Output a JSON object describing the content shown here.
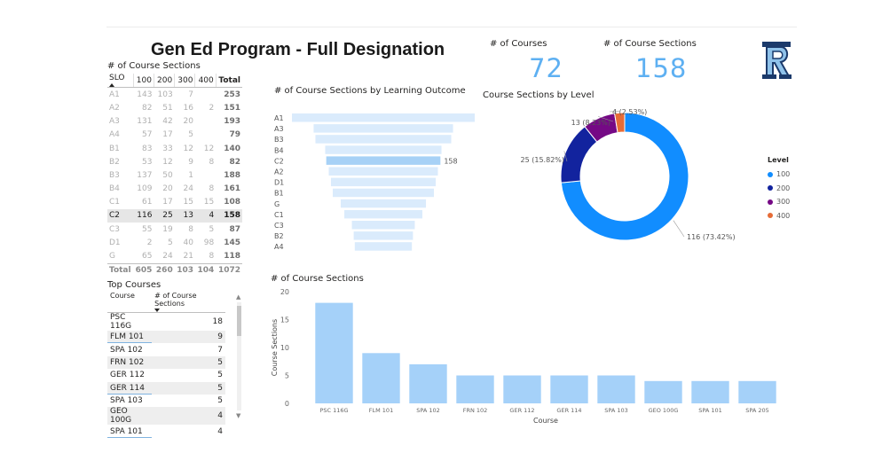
{
  "title": "Gen Ed Program - Full Designation",
  "matrix": {
    "heading": "# of Course Sections",
    "columns": [
      "SLO",
      "100",
      "200",
      "300",
      "400",
      "Total"
    ],
    "rows": [
      {
        "slo": "A1",
        "v100": "143",
        "v200": "103",
        "v300": "7",
        "v400": "",
        "total": "253"
      },
      {
        "slo": "A2",
        "v100": "82",
        "v200": "51",
        "v300": "16",
        "v400": "2",
        "total": "151"
      },
      {
        "slo": "A3",
        "v100": "131",
        "v200": "42",
        "v300": "20",
        "v400": "",
        "total": "193"
      },
      {
        "slo": "A4",
        "v100": "57",
        "v200": "17",
        "v300": "5",
        "v400": "",
        "total": "79"
      },
      {
        "slo": "B1",
        "v100": "83",
        "v200": "33",
        "v300": "12",
        "v400": "12",
        "total": "140"
      },
      {
        "slo": "B2",
        "v100": "53",
        "v200": "12",
        "v300": "9",
        "v400": "8",
        "total": "82"
      },
      {
        "slo": "B3",
        "v100": "137",
        "v200": "50",
        "v300": "1",
        "v400": "",
        "total": "188"
      },
      {
        "slo": "B4",
        "v100": "109",
        "v200": "20",
        "v300": "24",
        "v400": "8",
        "total": "161"
      },
      {
        "slo": "C1",
        "v100": "61",
        "v200": "17",
        "v300": "15",
        "v400": "15",
        "total": "108"
      },
      {
        "slo": "C2",
        "v100": "116",
        "v200": "25",
        "v300": "13",
        "v400": "4",
        "total": "158"
      },
      {
        "slo": "C3",
        "v100": "55",
        "v200": "19",
        "v300": "8",
        "v400": "5",
        "total": "87"
      },
      {
        "slo": "D1",
        "v100": "2",
        "v200": "5",
        "v300": "40",
        "v400": "98",
        "total": "145"
      },
      {
        "slo": "G",
        "v100": "65",
        "v200": "24",
        "v300": "21",
        "v400": "8",
        "total": "118"
      }
    ],
    "total_row": {
      "slo": "Total",
      "v100": "605",
      "v200": "260",
      "v300": "103",
      "v400": "104",
      "total": "1072"
    },
    "highlighted_row": "C2"
  },
  "top_courses": {
    "heading": "Top Courses",
    "col_course": "Course",
    "col_sections": "# of Course Sections",
    "rows": [
      {
        "course": "PSC 116G",
        "sections": "18"
      },
      {
        "course": "FLM 101",
        "sections": "9"
      },
      {
        "course": "SPA 102",
        "sections": "7"
      },
      {
        "course": "FRN 102",
        "sections": "5"
      },
      {
        "course": "GER 112",
        "sections": "5"
      },
      {
        "course": "GER 114",
        "sections": "5"
      },
      {
        "course": "SPA 103",
        "sections": "5"
      },
      {
        "course": "GEO 100G",
        "sections": "4"
      },
      {
        "course": "SPA 101",
        "sections": "4"
      }
    ],
    "scroll_up": "▲",
    "scroll_down": "▼"
  },
  "cards": {
    "courses_label": "# of Courses",
    "courses_value": "72",
    "sections_label": "# of Course Sections",
    "sections_value": "158"
  },
  "logo": {
    "icon": "university-r-logo-icon"
  },
  "colors": {
    "accent": "#5eb0f2",
    "funnel": "#daebfc",
    "funnel_selected": "#a7d1f6",
    "bar": "#a5d1f9",
    "level_100": "#118dff",
    "level_200": "#12239e",
    "level_300": "#750985",
    "level_400": "#e66c37"
  },
  "chart_data": [
    {
      "type": "funnel",
      "title": "# of Course Sections by Learning Outcome",
      "categories": [
        "A1",
        "A3",
        "B3",
        "B4",
        "C2",
        "A2",
        "D1",
        "B1",
        "G",
        "C1",
        "C3",
        "B2",
        "A4"
      ],
      "values": [
        253,
        193,
        188,
        161,
        158,
        151,
        145,
        140,
        118,
        108,
        87,
        82,
        79
      ],
      "highlighted": "C2",
      "data_labels": [
        {
          "category": "C2",
          "text": "158"
        }
      ]
    },
    {
      "type": "pie",
      "subtype": "donut",
      "title": "Course Sections by Level",
      "legend_title": "Level",
      "legend_position": "right",
      "labels": [
        "100",
        "200",
        "300",
        "400"
      ],
      "values": [
        116,
        25,
        13,
        4
      ],
      "data_labels": [
        "116 (73.42%)",
        "25 (15.82%)",
        "13 (8.23%)",
        "4 (2.53%)"
      ]
    },
    {
      "type": "bar",
      "title": "# of Course Sections",
      "xlabel": "Course",
      "ylabel": "Course Sections",
      "categories": [
        "PSC 116G",
        "FLM 101",
        "SPA 102",
        "FRN 102",
        "GER 112",
        "GER 114",
        "SPA 103",
        "GEO 100G",
        "SPA 101",
        "SPA 205"
      ],
      "values": [
        18,
        9,
        7,
        5,
        5,
        5,
        5,
        4,
        4,
        4
      ],
      "ylim": [
        0,
        20
      ],
      "yticks": [
        "0",
        "5",
        "10",
        "15",
        "20"
      ],
      "grid": false
    }
  ]
}
